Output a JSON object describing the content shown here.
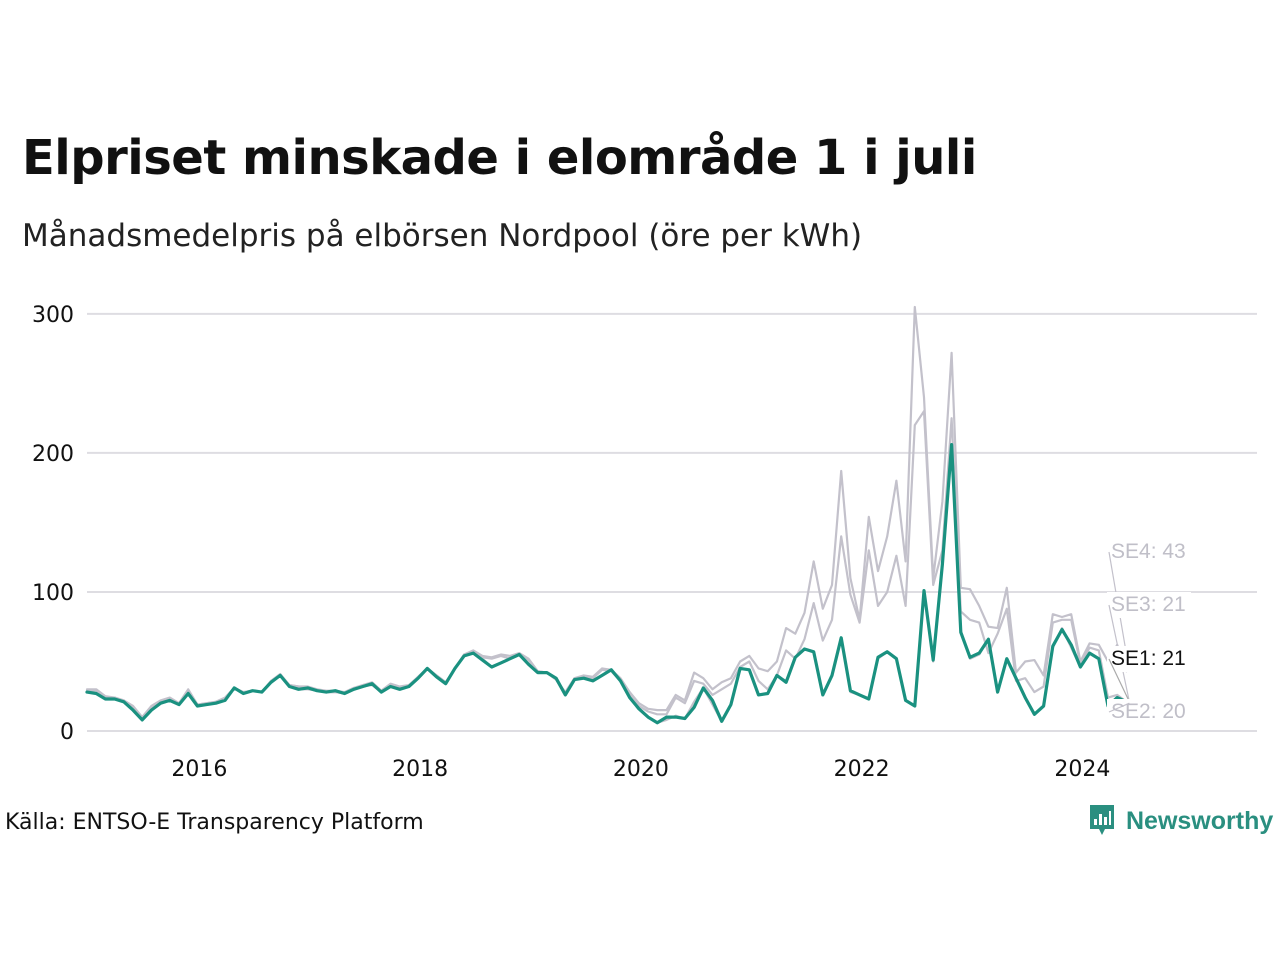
{
  "title": "Elpriset minskade i elområde 1 i juli",
  "subtitle": "Månadsmedelpris på elbörsen Nordpool (öre per kWh)",
  "source": "Källa: ENTSO-E Transparency Platform",
  "brand": "Newsworthy",
  "colors": {
    "highlight": "#1a9180",
    "muted": "#c3c1cb",
    "muted_label": "#c0bfc8",
    "grid": "#dedde2",
    "brand": "#2a8f80"
  },
  "chart_data": {
    "type": "line",
    "title": "Elpriset minskade i elområde 1 i juli",
    "ylabel": "öre per kWh",
    "xlim": [
      2015.0,
      2025.6
    ],
    "ylim": [
      0,
      310
    ],
    "y_ticks": [
      0,
      100,
      200,
      300
    ],
    "y_tick_labels": [
      "0",
      "100",
      "200",
      "300"
    ],
    "x_ticks": [
      2016,
      2018,
      2020,
      2022,
      2024
    ],
    "x_tick_labels": [
      "2016",
      "2018",
      "2020",
      "2022",
      "2024"
    ],
    "start": "2015-01",
    "end": "2024-07",
    "end_labels": [
      {
        "series": "SE4",
        "text": "SE4: 43"
      },
      {
        "series": "SE3",
        "text": "SE3: 21"
      },
      {
        "series": "SE1",
        "text": "SE1: 21"
      },
      {
        "series": "SE2",
        "text": "SE2: 20"
      }
    ],
    "series": [
      {
        "name": "SE4",
        "highlight": false,
        "values": [
          30,
          30,
          25,
          24,
          22,
          18,
          10,
          18,
          22,
          24,
          20,
          30,
          19,
          20,
          21,
          24,
          31,
          28,
          29,
          28,
          36,
          41,
          33,
          32,
          32,
          30,
          29,
          29,
          28,
          31,
          33,
          35,
          29,
          34,
          32,
          33,
          39,
          45,
          40,
          35,
          45,
          55,
          58,
          54,
          53,
          55,
          54,
          56,
          52,
          43,
          42,
          37,
          28,
          38,
          40,
          39,
          45,
          44,
          38,
          28,
          20,
          16,
          15,
          15,
          26,
          22,
          42,
          38,
          30,
          35,
          38,
          50,
          54,
          45,
          43,
          50,
          74,
          70,
          85,
          122,
          88,
          105,
          187,
          110,
          80,
          154,
          115,
          140,
          180,
          122,
          305,
          240,
          110,
          165,
          272,
          103,
          102,
          90,
          75,
          74,
          103,
          42,
          50,
          51,
          40,
          84,
          82,
          84,
          50,
          63,
          62,
          50,
          62,
          43
        ]
      },
      {
        "name": "SE3",
        "highlight": false,
        "values": [
          29,
          29,
          24,
          24,
          22,
          17,
          10,
          17,
          21,
          23,
          19,
          29,
          19,
          20,
          21,
          23,
          31,
          28,
          29,
          28,
          36,
          40,
          33,
          32,
          31,
          30,
          28,
          28,
          27,
          30,
          33,
          34,
          29,
          33,
          31,
          32,
          39,
          45,
          40,
          35,
          45,
          55,
          57,
          53,
          52,
          54,
          52,
          55,
          51,
          43,
          42,
          37,
          27,
          38,
          39,
          38,
          44,
          43,
          36,
          26,
          18,
          14,
          12,
          12,
          24,
          20,
          36,
          34,
          26,
          30,
          34,
          46,
          50,
          36,
          30,
          40,
          58,
          52,
          66,
          92,
          65,
          80,
          140,
          98,
          78,
          130,
          90,
          100,
          126,
          90,
          220,
          230,
          105,
          130,
          225,
          86,
          80,
          78,
          56,
          70,
          88,
          36,
          38,
          28,
          32,
          78,
          80,
          80,
          48,
          60,
          58,
          24,
          26,
          21
        ]
      },
      {
        "name": "SE2",
        "highlight": false,
        "values": [
          28,
          27,
          23,
          23,
          21,
          16,
          9,
          15,
          20,
          22,
          19,
          27,
          18,
          19,
          20,
          22,
          31,
          27,
          29,
          28,
          35,
          40,
          32,
          30,
          30,
          29,
          28,
          28,
          27,
          30,
          32,
          33,
          28,
          32,
          30,
          32,
          38,
          45,
          39,
          34,
          45,
          54,
          56,
          52,
          46,
          49,
          52,
          55,
          48,
          42,
          42,
          37,
          26,
          37,
          38,
          36,
          40,
          44,
          36,
          25,
          16,
          10,
          6,
          8,
          11,
          9,
          21,
          31,
          19,
          7,
          19,
          45,
          44,
          26,
          27,
          40,
          36,
          53,
          59,
          57,
          26,
          40,
          67,
          28,
          26,
          23,
          52,
          57,
          52,
          22,
          18,
          100,
          50,
          120,
          206,
          72,
          52,
          55,
          66,
          28,
          52,
          37,
          24,
          12,
          18,
          60,
          74,
          60,
          46,
          56,
          52,
          18,
          23,
          20
        ]
      },
      {
        "name": "SE1",
        "highlight": true,
        "values": [
          28,
          27,
          23,
          23,
          21,
          15,
          8,
          15,
          20,
          22,
          19,
          27,
          18,
          19,
          20,
          22,
          31,
          27,
          29,
          28,
          35,
          40,
          32,
          30,
          31,
          29,
          28,
          29,
          27,
          30,
          32,
          34,
          28,
          32,
          30,
          32,
          38,
          45,
          39,
          34,
          45,
          54,
          56,
          51,
          46,
          49,
          52,
          55,
          48,
          42,
          42,
          38,
          26,
          37,
          38,
          36,
          40,
          44,
          36,
          24,
          16,
          10,
          6,
          10,
          10,
          9,
          17,
          31,
          22,
          7,
          19,
          45,
          44,
          26,
          27,
          40,
          35,
          53,
          59,
          57,
          26,
          40,
          67,
          29,
          26,
          23,
          53,
          57,
          52,
          22,
          18,
          101,
          51,
          120,
          206,
          71,
          53,
          56,
          66,
          28,
          52,
          38,
          24,
          12,
          18,
          61,
          73,
          62,
          46,
          56,
          52,
          18,
          24,
          21
        ]
      }
    ]
  }
}
